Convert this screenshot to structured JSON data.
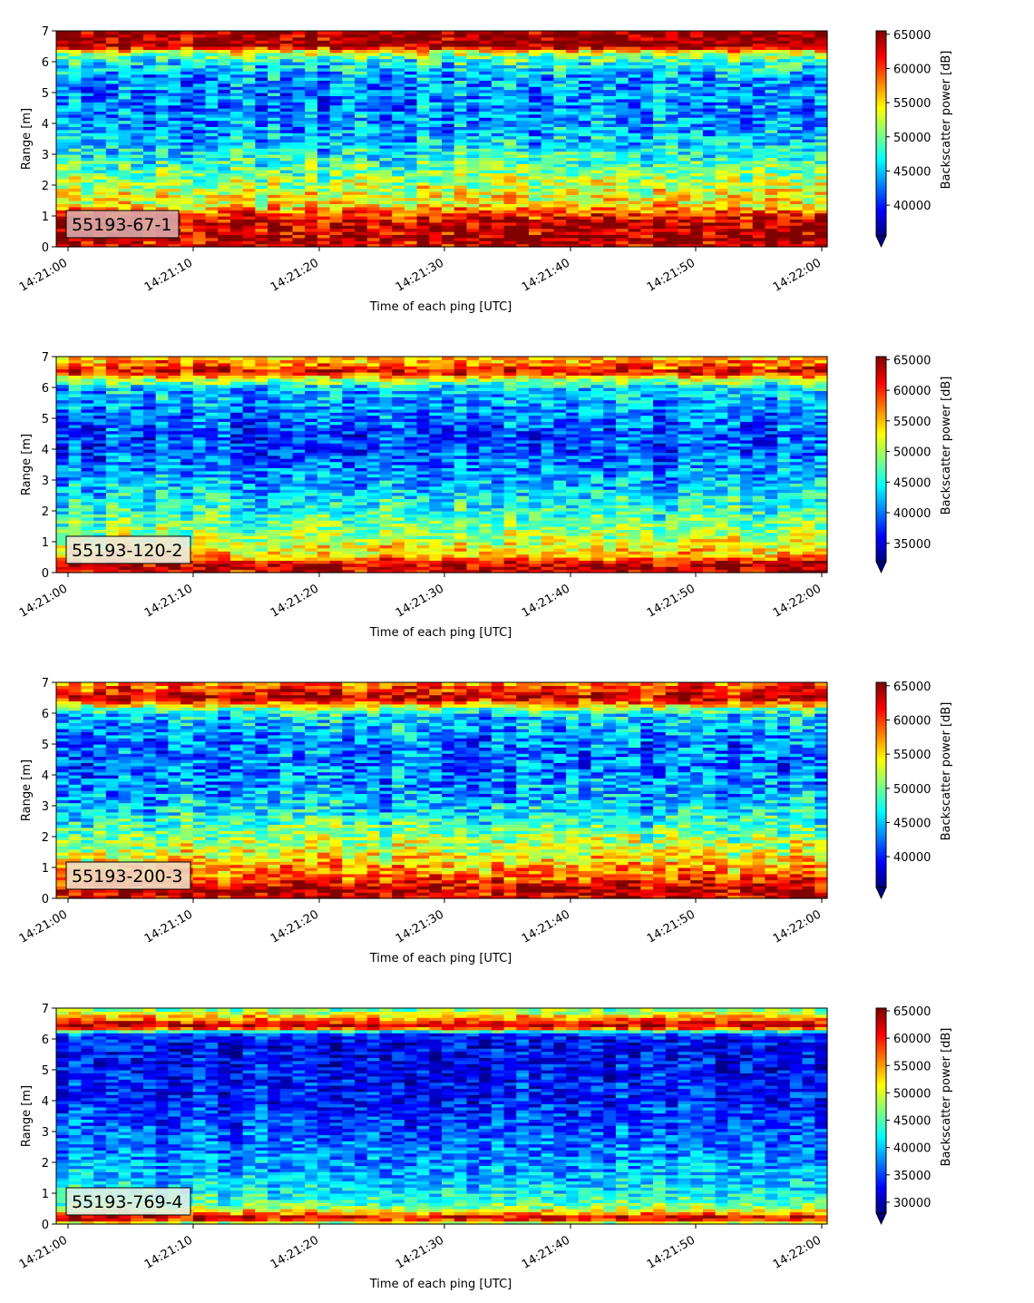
{
  "chart_data": [
    {
      "type": "heatmap",
      "instrument_label": "55193-67-1",
      "xlabel": "Time of each ping [UTC]",
      "ylabel": "Range [m]",
      "colorbar_label": "Backscatter power [dB]",
      "colormap": "jet",
      "color_range": [
        35500,
        65500
      ],
      "colorbar_ticks": [
        "40000",
        "45000",
        "50000",
        "55000",
        "60000",
        "65000"
      ],
      "colorbar_tick_values": [
        40000,
        45000,
        50000,
        55000,
        60000,
        65000
      ],
      "xlim": [
        "14:20:59",
        "14:22:00.5"
      ],
      "x_ticks": [
        "14:21:00",
        "14:21:10",
        "14:21:20",
        "14:21:30",
        "14:21:40",
        "14:21:50",
        "14:22:00"
      ],
      "ylim": [
        0,
        7
      ],
      "y_ticks": [
        "0",
        "1",
        "2",
        "3",
        "4",
        "5",
        "6",
        "7"
      ],
      "range_profile": [
        {
          "range_m": 0.1,
          "value": 63000
        },
        {
          "range_m": 0.25,
          "value": 64000
        },
        {
          "range_m": 0.5,
          "value": 63500
        },
        {
          "range_m": 0.8,
          "value": 63000
        },
        {
          "range_m": 1.1,
          "value": 60000
        },
        {
          "range_m": 1.3,
          "value": 55000
        },
        {
          "range_m": 1.6,
          "value": 54000
        },
        {
          "range_m": 2.0,
          "value": 52000
        },
        {
          "range_m": 2.4,
          "value": 50000
        },
        {
          "range_m": 3.0,
          "value": 47000
        },
        {
          "range_m": 3.5,
          "value": 45000
        },
        {
          "range_m": 4.0,
          "value": 43500
        },
        {
          "range_m": 4.5,
          "value": 43000
        },
        {
          "range_m": 5.0,
          "value": 43000
        },
        {
          "range_m": 5.5,
          "value": 44000
        },
        {
          "range_m": 6.0,
          "value": 47000
        },
        {
          "range_m": 6.3,
          "value": 52000
        },
        {
          "range_m": 6.5,
          "value": 64500
        },
        {
          "range_m": 7.0,
          "value": 65000
        }
      ]
    },
    {
      "type": "heatmap",
      "instrument_label": "55193-120-2",
      "xlabel": "Time of each ping [UTC]",
      "ylabel": "Range [m]",
      "colorbar_label": "Backscatter power [dB]",
      "colormap": "jet",
      "color_range": [
        32000,
        65500
      ],
      "colorbar_ticks": [
        "35000",
        "40000",
        "45000",
        "50000",
        "55000",
        "60000",
        "65000"
      ],
      "colorbar_tick_values": [
        35000,
        40000,
        45000,
        50000,
        55000,
        60000,
        65000
      ],
      "xlim": [
        "14:20:59",
        "14:22:00.5"
      ],
      "x_ticks": [
        "14:21:00",
        "14:21:10",
        "14:21:20",
        "14:21:30",
        "14:21:40",
        "14:21:50",
        "14:22:00"
      ],
      "ylim": [
        0,
        7
      ],
      "y_ticks": [
        "0",
        "1",
        "2",
        "3",
        "4",
        "5",
        "6",
        "7"
      ],
      "range_profile": [
        {
          "range_m": 0.1,
          "value": 62000
        },
        {
          "range_m": 0.3,
          "value": 63500
        },
        {
          "range_m": 0.5,
          "value": 56000
        },
        {
          "range_m": 0.8,
          "value": 53000
        },
        {
          "range_m": 1.2,
          "value": 50000
        },
        {
          "range_m": 1.6,
          "value": 48000
        },
        {
          "range_m": 2.0,
          "value": 46000
        },
        {
          "range_m": 2.5,
          "value": 44000
        },
        {
          "range_m": 3.0,
          "value": 42000
        },
        {
          "range_m": 3.5,
          "value": 40500
        },
        {
          "range_m": 4.0,
          "value": 38500
        },
        {
          "range_m": 4.5,
          "value": 38500
        },
        {
          "range_m": 5.0,
          "value": 40000
        },
        {
          "range_m": 5.5,
          "value": 41500
        },
        {
          "range_m": 6.0,
          "value": 43000
        },
        {
          "range_m": 6.3,
          "value": 52000
        },
        {
          "range_m": 6.5,
          "value": 62000
        },
        {
          "range_m": 6.8,
          "value": 57000
        },
        {
          "range_m": 7.0,
          "value": 55000
        }
      ]
    },
    {
      "type": "heatmap",
      "instrument_label": "55193-200-3",
      "xlabel": "Time of each ping [UTC]",
      "ylabel": "Range [m]",
      "colorbar_label": "Backscatter power [dB]",
      "colormap": "jet",
      "color_range": [
        35500,
        65500
      ],
      "colorbar_ticks": [
        "40000",
        "45000",
        "50000",
        "55000",
        "60000",
        "65000"
      ],
      "colorbar_tick_values": [
        40000,
        45000,
        50000,
        55000,
        60000,
        65000
      ],
      "xlim": [
        "14:20:59",
        "14:22:00.5"
      ],
      "x_ticks": [
        "14:21:00",
        "14:21:10",
        "14:21:20",
        "14:21:30",
        "14:21:40",
        "14:21:50",
        "14:22:00"
      ],
      "ylim": [
        0,
        7
      ],
      "y_ticks": [
        "0",
        "1",
        "2",
        "3",
        "4",
        "5",
        "6",
        "7"
      ],
      "range_profile": [
        {
          "range_m": 0.1,
          "value": 63000
        },
        {
          "range_m": 0.3,
          "value": 64000
        },
        {
          "range_m": 0.6,
          "value": 60000
        },
        {
          "range_m": 0.9,
          "value": 58000
        },
        {
          "range_m": 1.2,
          "value": 55000
        },
        {
          "range_m": 1.6,
          "value": 53000
        },
        {
          "range_m": 2.0,
          "value": 51000
        },
        {
          "range_m": 2.5,
          "value": 48000
        },
        {
          "range_m": 3.0,
          "value": 45500
        },
        {
          "range_m": 3.5,
          "value": 44000
        },
        {
          "range_m": 4.0,
          "value": 43000
        },
        {
          "range_m": 4.5,
          "value": 42500
        },
        {
          "range_m": 5.0,
          "value": 43000
        },
        {
          "range_m": 5.5,
          "value": 44000
        },
        {
          "range_m": 6.0,
          "value": 46000
        },
        {
          "range_m": 6.3,
          "value": 56000
        },
        {
          "range_m": 6.5,
          "value": 64000
        },
        {
          "range_m": 6.8,
          "value": 60000
        },
        {
          "range_m": 7.0,
          "value": 58000
        }
      ]
    },
    {
      "type": "heatmap",
      "instrument_label": "55193-769-4",
      "xlabel": "Time of each ping [UTC]",
      "ylabel": "Range [m]",
      "colorbar_label": "Backscatter power [dB]",
      "colormap": "jet",
      "color_range": [
        28000,
        65500
      ],
      "colorbar_ticks": [
        "30000",
        "35000",
        "40000",
        "45000",
        "50000",
        "55000",
        "60000",
        "65000"
      ],
      "colorbar_tick_values": [
        30000,
        35000,
        40000,
        45000,
        50000,
        55000,
        60000,
        65000
      ],
      "xlim": [
        "14:20:59",
        "14:22:00.5"
      ],
      "x_ticks": [
        "14:21:00",
        "14:21:10",
        "14:21:20",
        "14:21:30",
        "14:21:40",
        "14:21:50",
        "14:22:00"
      ],
      "ylim": [
        0,
        7
      ],
      "y_ticks": [
        "0",
        "1",
        "2",
        "3",
        "4",
        "5",
        "6",
        "7"
      ],
      "range_profile": [
        {
          "range_m": 0.05,
          "value": 50000
        },
        {
          "range_m": 0.2,
          "value": 64000
        },
        {
          "range_m": 0.35,
          "value": 56000
        },
        {
          "range_m": 0.6,
          "value": 46000
        },
        {
          "range_m": 1.0,
          "value": 42000
        },
        {
          "range_m": 1.5,
          "value": 40000
        },
        {
          "range_m": 2.0,
          "value": 38500
        },
        {
          "range_m": 2.5,
          "value": 37000
        },
        {
          "range_m": 3.0,
          "value": 36000
        },
        {
          "range_m": 3.5,
          "value": 35000
        },
        {
          "range_m": 4.0,
          "value": 34000
        },
        {
          "range_m": 4.5,
          "value": 33500
        },
        {
          "range_m": 5.0,
          "value": 33000
        },
        {
          "range_m": 5.5,
          "value": 32500
        },
        {
          "range_m": 6.0,
          "value": 33000
        },
        {
          "range_m": 6.2,
          "value": 36000
        },
        {
          "range_m": 6.4,
          "value": 64500
        },
        {
          "range_m": 6.7,
          "value": 55000
        },
        {
          "range_m": 7.0,
          "value": 45000
        }
      ]
    }
  ]
}
